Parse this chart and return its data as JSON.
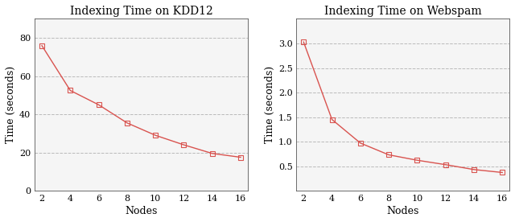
{
  "kdd12": {
    "title": "Indexing Time on KDD12",
    "nodes": [
      2,
      4,
      6,
      8,
      10,
      12,
      14,
      16
    ],
    "times": [
      76,
      52.5,
      45,
      35.5,
      29,
      24,
      19.5,
      17.5
    ],
    "ylim": [
      0,
      90
    ],
    "yticks": [
      0,
      20,
      40,
      60,
      80
    ],
    "xlim": [
      1.5,
      16.5
    ],
    "xlabel": "Nodes",
    "ylabel": "Time (seconds)"
  },
  "webspam": {
    "title": "Indexing Time on Webspam",
    "nodes": [
      2,
      4,
      6,
      8,
      10,
      12,
      14,
      16
    ],
    "times": [
      3.03,
      1.45,
      0.97,
      0.73,
      0.62,
      0.53,
      0.43,
      0.37
    ],
    "ylim": [
      0,
      3.5
    ],
    "yticks": [
      0.5,
      1.0,
      1.5,
      2.0,
      2.5,
      3.0
    ],
    "xlim": [
      1.5,
      16.5
    ],
    "xlabel": "Nodes",
    "ylabel": "Time (seconds)"
  },
  "line_color": "#d9534f",
  "marker": "s",
  "marker_facecolor": "none",
  "marker_edgecolor": "#d9534f",
  "marker_size": 4,
  "marker_linewidth": 0.8,
  "grid_color": "#bbbbbb",
  "grid_style": "--",
  "grid_linewidth": 0.7,
  "background_color": "#ffffff",
  "axes_bg_color": "#f5f5f5",
  "title_fontsize": 10,
  "label_fontsize": 9,
  "tick_fontsize": 8,
  "line_width": 1.0,
  "font_family": "serif"
}
